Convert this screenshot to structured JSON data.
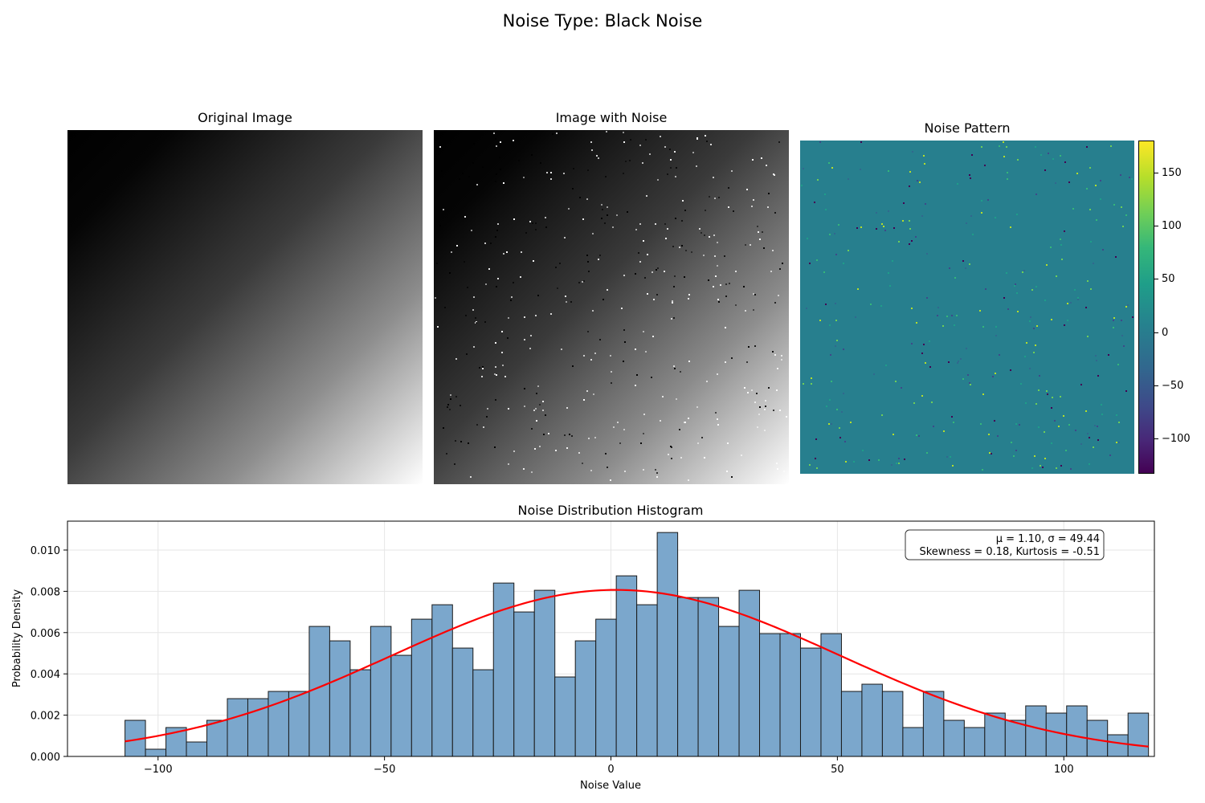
{
  "suptitle": "Noise Type: Black Noise",
  "panels": {
    "original_title": "Original Image",
    "noisy_title": "Image with Noise",
    "noise_title": "Noise Pattern"
  },
  "colorbar": {
    "colormap": "viridis",
    "range": [
      -133,
      180
    ],
    "ticks": [
      "150",
      "100",
      "50",
      "0",
      "−50",
      "−100"
    ],
    "tick_values": [
      150,
      100,
      50,
      0,
      -50,
      -100
    ]
  },
  "colors": {
    "bar_fill": "#7ba7cc",
    "bar_edge": "#1a1a1a",
    "fit_line": "#ff0000",
    "noise_background": "#277f8e"
  },
  "chart_data": {
    "type": "bar",
    "title": "Noise Distribution Histogram",
    "xlabel": "Noise Value",
    "ylabel": "Probability Density",
    "xlim": [
      -120,
      120
    ],
    "ylim": [
      0,
      0.0114
    ],
    "grid": true,
    "xticks": [
      -100,
      -50,
      0,
      50,
      100
    ],
    "xtick_labels": [
      "−100",
      "−50",
      "0",
      "50",
      "100"
    ],
    "yticks": [
      0,
      0.002,
      0.004,
      0.006,
      0.008,
      0.01
    ],
    "ytick_labels": [
      "0.000",
      "0.002",
      "0.004",
      "0.006",
      "0.008",
      "0.010"
    ],
    "bin_start": -107.3,
    "bin_width": 4.52,
    "values": [
      0.00175,
      0.00035,
      0.0014,
      0.0007,
      0.00175,
      0.0028,
      0.0028,
      0.00315,
      0.00315,
      0.0063,
      0.0056,
      0.0042,
      0.0063,
      0.0049,
      0.00665,
      0.00735,
      0.00525,
      0.0042,
      0.0084,
      0.007,
      0.00805,
      0.00385,
      0.0056,
      0.00665,
      0.00875,
      0.00735,
      0.01085,
      0.0077,
      0.0077,
      0.0063,
      0.00805,
      0.00595,
      0.00595,
      0.00525,
      0.00595,
      0.00315,
      0.0035,
      0.00315,
      0.0014,
      0.00315,
      0.00175,
      0.0014,
      0.0021,
      0.00175,
      0.00245,
      0.0021,
      0.00245,
      0.00175,
      0.00105,
      0.0021
    ],
    "fit": {
      "mu": 1.1,
      "sigma": 49.44
    },
    "stats_line1": "μ = 1.10, σ = 49.44",
    "stats_line2": "Skewness = 0.18, Kurtosis = -0.51"
  }
}
